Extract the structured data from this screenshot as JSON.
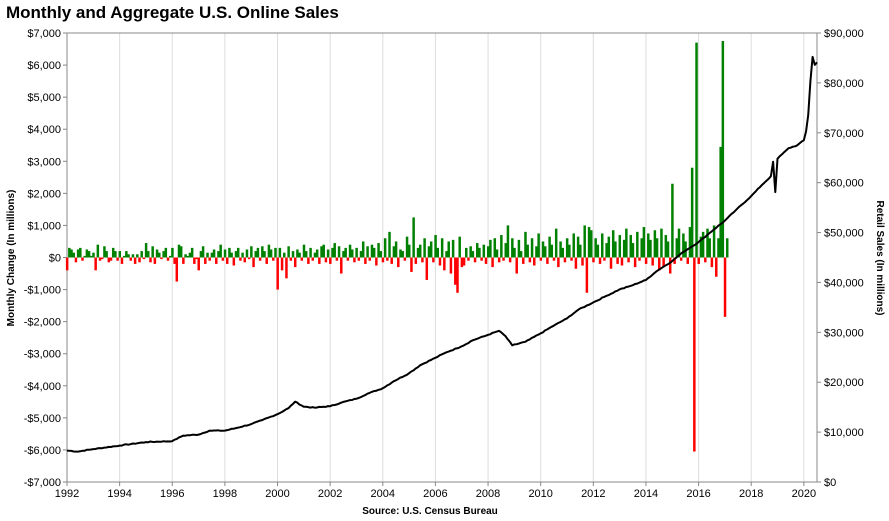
{
  "chart_data": {
    "type": "bar+line",
    "title": "Monthly and Aggregate U.S. Online Sales",
    "source": "Source: U.S. Census Bureau",
    "y_left_label": "Monthly Change (In millions)",
    "y_right_label": "Retail Sales (In millions)",
    "y_left_lim": [
      -7000,
      7000
    ],
    "y_right_lim": [
      0,
      90000
    ],
    "y_left_ticks": [
      "$7,000",
      "$6,000",
      "$5,000",
      "$4,000",
      "$3,000",
      "$2,000",
      "$1,000",
      "$0",
      "-$1,000",
      "-$2,000",
      "-$3,000",
      "-$4,000",
      "-$5,000",
      "-$6,000",
      "-$7,000"
    ],
    "y_right_ticks": [
      "$90,000",
      "$80,000",
      "$70,000",
      "$60,000",
      "$50,000",
      "$40,000",
      "$30,000",
      "$20,000",
      "$10,000",
      "$0"
    ],
    "x_ticks": [
      "1992",
      "1994",
      "1996",
      "1998",
      "2000",
      "2002",
      "2004",
      "2006",
      "2008",
      "2010",
      "2012",
      "2014",
      "2016",
      "2018",
      "2020"
    ],
    "x_range": [
      "1992-01",
      "2020-07"
    ],
    "grid": true,
    "colors": {
      "positive": "#008000",
      "negative": "#ff0000",
      "line": "#000000",
      "grid": "#dddddd"
    },
    "bar_series": {
      "name": "Monthly change",
      "start": "1992-01",
      "values": [
        -400,
        300,
        250,
        150,
        -150,
        250,
        300,
        -100,
        50,
        250,
        200,
        50,
        150,
        -400,
        400,
        -100,
        -50,
        350,
        200,
        -150,
        -100,
        300,
        200,
        -100,
        200,
        -200,
        50,
        200,
        100,
        -100,
        100,
        -200,
        100,
        -150,
        200,
        -50,
        450,
        200,
        -150,
        350,
        -200,
        250,
        150,
        -50,
        200,
        300,
        -100,
        50,
        300,
        -200,
        -750,
        400,
        350,
        -200,
        100,
        50,
        150,
        300,
        -200,
        -50,
        -400,
        200,
        350,
        -200,
        150,
        -100,
        150,
        250,
        -200,
        200,
        400,
        -100,
        250,
        -200,
        300,
        150,
        -250,
        200,
        300,
        -100,
        150,
        -150,
        250,
        -50,
        350,
        -300,
        200,
        300,
        -100,
        350,
        200,
        -200,
        400,
        250,
        -100,
        300,
        -1000,
        300,
        -400,
        150,
        -650,
        350,
        -100,
        200,
        -300,
        250,
        150,
        -100,
        400,
        200,
        -200,
        300,
        -100,
        150,
        250,
        -200,
        350,
        400,
        -150,
        250,
        -200,
        300,
        450,
        -100,
        350,
        -500,
        200,
        300,
        -100,
        400,
        250,
        -150,
        300,
        -100,
        200,
        500,
        -200,
        350,
        -100,
        400,
        300,
        -250,
        450,
        200,
        -150,
        600,
        -100,
        800,
        -200,
        350,
        500,
        -300,
        250,
        200,
        -100,
        650,
        400,
        -450,
        1250,
        -200,
        300,
        400,
        -150,
        600,
        -700,
        350,
        500,
        -150,
        700,
        300,
        -250,
        600,
        -400,
        200,
        500,
        -500,
        550,
        -850,
        -1100,
        650,
        -300,
        -250,
        300,
        -100,
        350,
        200,
        -150,
        450,
        300,
        -100,
        400,
        -200,
        350,
        550,
        -300,
        600,
        250,
        -150,
        700,
        -100,
        450,
        1000,
        -150,
        600,
        300,
        -500,
        550,
        200,
        -200,
        800,
        400,
        -150,
        600,
        -250,
        350,
        750,
        -100,
        500,
        350,
        -200,
        650,
        400,
        -100,
        900,
        -300,
        500,
        300,
        -150,
        600,
        400,
        -100,
        750,
        -350,
        650,
        400,
        -250,
        1000,
        -1100,
        950,
        850,
        -150,
        600,
        400,
        -200,
        750,
        -100,
        450,
        650,
        -350,
        850,
        500,
        -200,
        700,
        -250,
        550,
        900,
        -150,
        700,
        450,
        -300,
        800,
        -100,
        600,
        950,
        -200,
        750,
        550,
        -250,
        850,
        600,
        -400,
        900,
        -300,
        700,
        500,
        -500,
        2300,
        -200,
        600,
        900,
        -100,
        750,
        500,
        -200,
        950,
        2800,
        -6050,
        6700,
        -200,
        650,
        800,
        -150,
        900,
        600,
        -300,
        1000,
        -600,
        600,
        3450,
        6750,
        -1850,
        600
      ]
    },
    "line_series": {
      "name": "Retail Sales",
      "anchors": [
        [
          "1992-01",
          6300
        ],
        [
          "1992-06",
          6100
        ],
        [
          "1993-01",
          6600
        ],
        [
          "1994-01",
          7300
        ],
        [
          "1995-01",
          8000
        ],
        [
          "1996-01",
          8200
        ],
        [
          "1996-06",
          9300
        ],
        [
          "1997-01",
          9500
        ],
        [
          "1997-06",
          10300
        ],
        [
          "1998-01",
          10300
        ],
        [
          "1998-06",
          10800
        ],
        [
          "1999-01",
          11600
        ],
        [
          "1999-06",
          12400
        ],
        [
          "2000-01",
          13600
        ],
        [
          "2000-06",
          14800
        ],
        [
          "2000-09",
          16100
        ],
        [
          "2001-01",
          15100
        ],
        [
          "2001-06",
          14900
        ],
        [
          "2002-01",
          15200
        ],
        [
          "2002-06",
          15900
        ],
        [
          "2003-01",
          16700
        ],
        [
          "2003-06",
          17700
        ],
        [
          "2004-01",
          18800
        ],
        [
          "2004-06",
          20200
        ],
        [
          "2005-01",
          21800
        ],
        [
          "2005-06",
          23400
        ],
        [
          "2006-01",
          24900
        ],
        [
          "2006-06",
          26000
        ],
        [
          "2007-01",
          27200
        ],
        [
          "2007-06",
          28400
        ],
        [
          "2008-01",
          29500
        ],
        [
          "2008-06",
          30300
        ],
        [
          "2008-09",
          29200
        ],
        [
          "2008-12",
          27400
        ],
        [
          "2009-06",
          28100
        ],
        [
          "2010-01",
          29800
        ],
        [
          "2010-06",
          31100
        ],
        [
          "2011-01",
          32800
        ],
        [
          "2011-06",
          34500
        ],
        [
          "2012-01",
          36000
        ],
        [
          "2012-06",
          37100
        ],
        [
          "2013-01",
          38600
        ],
        [
          "2013-06",
          39300
        ],
        [
          "2014-01",
          40500
        ],
        [
          "2014-06",
          42300
        ],
        [
          "2015-01",
          44300
        ],
        [
          "2015-06",
          46100
        ],
        [
          "2016-01",
          48100
        ],
        [
          "2016-06",
          49900
        ],
        [
          "2017-01",
          52400
        ],
        [
          "2017-06",
          54500
        ],
        [
          "2018-01",
          57300
        ],
        [
          "2018-06",
          59600
        ],
        [
          "2018-10",
          61300
        ],
        [
          "2018-11",
          64200
        ],
        [
          "2018-12",
          58100
        ],
        [
          "2019-01",
          64800
        ],
        [
          "2019-06",
          66900
        ],
        [
          "2019-10",
          67500
        ],
        [
          "2020-01",
          68500
        ],
        [
          "2020-02",
          70200
        ],
        [
          "2020-03",
          73500
        ],
        [
          "2020-04",
          80300
        ],
        [
          "2020-05",
          85200
        ],
        [
          "2020-06",
          83600
        ],
        [
          "2020-07",
          84100
        ]
      ]
    }
  }
}
